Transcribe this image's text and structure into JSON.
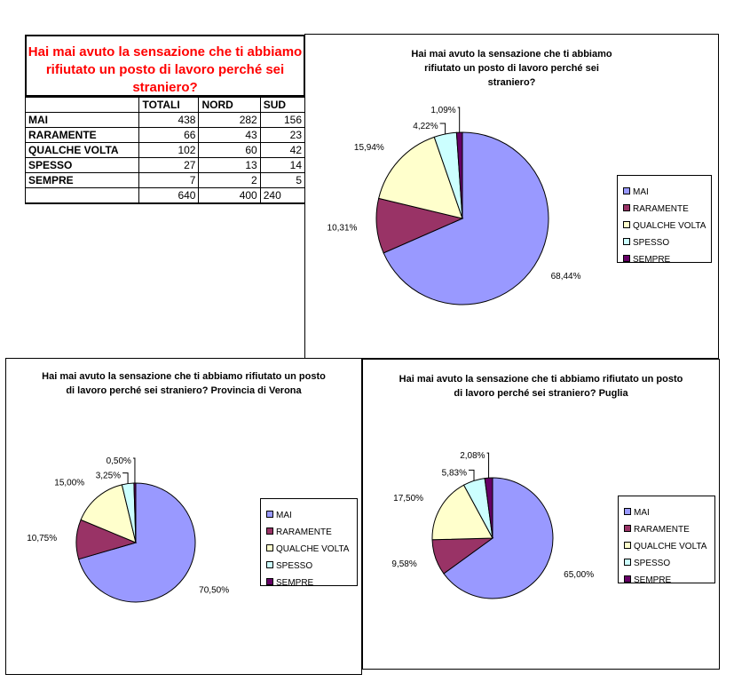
{
  "table": {
    "title": "Hai mai avuto la sensazione che ti abbiamo rifiutato un posto di lavoro perché sei straniero?",
    "headers": [
      "",
      "TOTALI",
      "NORD",
      "SUD"
    ],
    "rows": [
      {
        "label": "MAI",
        "values": [
          "438",
          "282",
          "156"
        ]
      },
      {
        "label": "RARAMENTE",
        "values": [
          "66",
          "43",
          "23"
        ]
      },
      {
        "label": "QUALCHE VOLTA",
        "values": [
          "102",
          "60",
          "42"
        ]
      },
      {
        "label": "SPESSO",
        "values": [
          "27",
          "13",
          "14"
        ]
      },
      {
        "label": "SEMPRE",
        "values": [
          "7",
          "2",
          "5"
        ]
      }
    ],
    "totals": [
      "640",
      "400",
      "240"
    ]
  },
  "colors": {
    "MAI": "#9999ff",
    "RARAMENTE": "#993366",
    "QUALCHE VOLTA": "#ffffcc",
    "SPESSO": "#ccffff",
    "SEMPRE": "#660066"
  },
  "chart_data": [
    {
      "type": "pie",
      "title": "Hai mai avuto la sensazione che ti abbiamo rifiutato un posto di lavoro perché sei straniero?",
      "categories": [
        "MAI",
        "RARAMENTE",
        "QUALCHE VOLTA",
        "SPESSO",
        "SEMPRE"
      ],
      "values": [
        68.44,
        10.31,
        15.94,
        4.22,
        1.09
      ],
      "labels": [
        "68,44%",
        "10,31%",
        "15,94%",
        "4,22%",
        "1,09%"
      ],
      "legend": "right"
    },
    {
      "type": "pie",
      "title": "Hai mai avuto la sensazione che ti abbiamo rifiutato un posto di lavoro perché sei straniero? Provincia di Verona",
      "categories": [
        "MAI",
        "RARAMENTE",
        "QUALCHE VOLTA",
        "SPESSO",
        "SEMPRE"
      ],
      "values": [
        70.5,
        10.75,
        15.0,
        3.25,
        0.5
      ],
      "labels": [
        "70,50%",
        "10,75%",
        "15,00%",
        "3,25%",
        "0,50%"
      ],
      "legend": "right"
    },
    {
      "type": "pie",
      "title": "Hai mai avuto la sensazione che ti abbiamo rifiutato un posto di lavoro perché sei straniero? Puglia",
      "categories": [
        "MAI",
        "RARAMENTE",
        "QUALCHE VOLTA",
        "SPESSO",
        "SEMPRE"
      ],
      "values": [
        65.0,
        9.58,
        17.5,
        5.83,
        2.08
      ],
      "labels": [
        "65,00%",
        "9,58%",
        "17,50%",
        "5,83%",
        "2,08%"
      ],
      "legend": "right"
    }
  ]
}
